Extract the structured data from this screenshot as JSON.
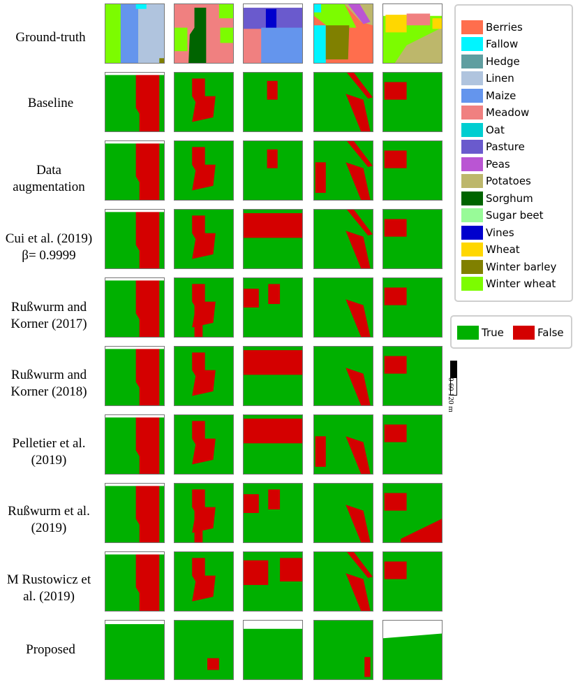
{
  "rows": [
    {
      "label": "Ground-truth",
      "kind": "gt"
    },
    {
      "label": "Baseline",
      "kind": "pred"
    },
    {
      "label": "Data augmentation",
      "kind": "pred"
    },
    {
      "label": "Cui et al. (2019) β= 0.9999",
      "kind": "pred"
    },
    {
      "label": "Rußwurm and Korner (2017)",
      "kind": "pred"
    },
    {
      "label": "Rußwurm and Korner (2018)",
      "kind": "pred"
    },
    {
      "label": "Pelletier et al. (2019)",
      "kind": "pred"
    },
    {
      "label": "Rußwurm et al. (2019)",
      "kind": "pred"
    },
    {
      "label": "M Rustowicz et al. (2019)",
      "kind": "pred"
    },
    {
      "label": "Proposed",
      "kind": "pred"
    }
  ],
  "legend": {
    "classes": [
      {
        "label": "Berries",
        "color": "#ff6e4d"
      },
      {
        "label": "Fallow",
        "color": "#00f5ff"
      },
      {
        "label": "Hedge",
        "color": "#5f9ea0"
      },
      {
        "label": "Linen",
        "color": "#b0c4de"
      },
      {
        "label": "Maize",
        "color": "#6495ed"
      },
      {
        "label": "Meadow",
        "color": "#f08080"
      },
      {
        "label": "Oat",
        "color": "#00ced1"
      },
      {
        "label": "Pasture",
        "color": "#6a5acd"
      },
      {
        "label": "Peas",
        "color": "#ba55d3"
      },
      {
        "label": "Potatoes",
        "color": "#bdb76b"
      },
      {
        "label": "Sorghum",
        "color": "#006400"
      },
      {
        "label": "Sugar beet",
        "color": "#98fb98"
      },
      {
        "label": "Vines",
        "color": "#0000cd"
      },
      {
        "label": "Wheat",
        "color": "#ffd700"
      },
      {
        "label": "Winter barley",
        "color": "#808000"
      },
      {
        "label": "Winter wheat",
        "color": "#7cfc00"
      }
    ]
  },
  "correctness_legend": [
    {
      "label": "True",
      "color": "#00b000"
    },
    {
      "label": "False",
      "color": "#d40000"
    }
  ],
  "scale_bar": {
    "text": "0  60  120 m"
  }
}
